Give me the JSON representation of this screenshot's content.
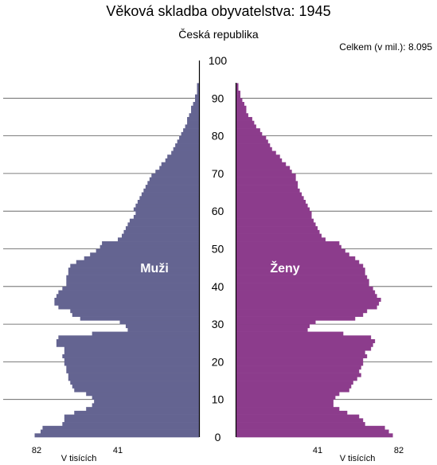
{
  "title": "Věková skladba obyvatelstva: 1945",
  "subtitle": "Česká republika",
  "total": {
    "label": "Celkem (v mil.):",
    "value": "8.095"
  },
  "colors": {
    "male": "#646491",
    "female": "#8c3c8c",
    "gridline": "#555555",
    "axis": "#000000"
  },
  "chart_data": {
    "type": "bar",
    "orientation": "horizontal-population-pyramid",
    "ylim": [
      0,
      100
    ],
    "yticks": [
      0,
      10,
      20,
      30,
      40,
      50,
      60,
      70,
      80,
      90,
      100
    ],
    "xticks": [
      82,
      41
    ],
    "xlim": [
      0,
      82
    ],
    "unit_label": "V tisících",
    "series": [
      {
        "name": "Muži",
        "color": "#646491",
        "values": [
          83,
          80,
          79,
          69,
          68,
          68,
          63,
          57,
          54,
          53,
          54,
          57,
          63,
          64,
          65,
          66,
          66,
          67,
          67,
          68,
          68,
          69,
          68,
          68,
          72,
          72,
          71,
          54,
          36,
          37,
          40,
          60,
          64,
          65,
          71,
          73,
          73,
          72,
          71,
          69,
          67,
          67,
          67,
          66,
          66,
          65,
          62,
          58,
          55,
          52,
          50,
          49,
          41,
          39,
          38,
          37,
          36,
          35,
          33,
          32,
          33,
          32,
          31,
          30,
          29,
          28,
          27,
          26,
          25,
          24,
          22,
          20,
          19,
          17,
          16,
          14,
          13,
          12,
          11,
          10,
          9,
          8,
          7,
          6,
          6,
          5,
          4,
          4,
          3,
          2,
          2,
          1,
          1,
          1,
          0,
          0,
          0,
          0,
          0,
          0,
          0
        ]
      },
      {
        "name": "Ženy",
        "color": "#8c3c8c",
        "values": [
          79,
          77,
          75,
          65,
          64,
          62,
          56,
          52,
          49,
          49,
          50,
          52,
          57,
          58,
          59,
          61,
          63,
          62,
          63,
          64,
          64,
          66,
          65,
          68,
          69,
          70,
          68,
          54,
          36,
          37,
          40,
          60,
          64,
          66,
          71,
          72,
          73,
          71,
          70,
          69,
          67,
          67,
          66,
          65,
          65,
          64,
          62,
          60,
          57,
          55,
          53,
          52,
          45,
          43,
          42,
          41,
          40,
          39,
          38,
          38,
          37,
          36,
          35,
          34,
          33,
          32,
          31,
          31,
          30,
          30,
          28,
          27,
          25,
          23,
          22,
          20,
          18,
          17,
          16,
          15,
          13,
          12,
          10,
          9,
          8,
          6,
          5,
          5,
          4,
          3,
          2,
          2,
          1,
          1,
          0,
          0,
          0,
          0,
          0,
          0,
          0
        ]
      }
    ],
    "annotations": [
      "Muži",
      "Ženy"
    ]
  }
}
